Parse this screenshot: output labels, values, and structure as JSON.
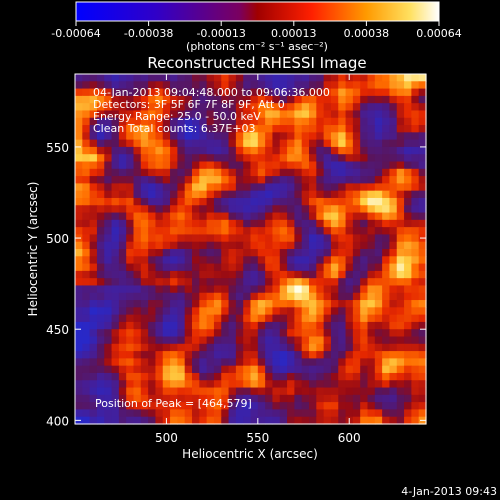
{
  "chart_data": {
    "type": "heatmap",
    "title": "Reconstructed RHESSI Image",
    "xlabel": "Heliocentric X (arcsec)",
    "ylabel": "Heliocentric Y (arcsec)",
    "xlim": [
      450,
      642
    ],
    "ylim": [
      398,
      590
    ],
    "xticks": [
      500,
      550,
      600
    ],
    "yticks": [
      400,
      450,
      500,
      550
    ],
    "colorbar": {
      "min": -0.00064,
      "max": 0.00064,
      "tick_labels": [
        "-0.00064",
        "-0.00038",
        "-0.00013",
        "0.00013",
        "0.00038",
        "0.00064"
      ],
      "units_label": "(photons cm⁻² s⁻¹ asec⁻²)"
    },
    "annotations": [
      "04-Jan-2013 09:04:48.000 to 09:06:36.000",
      "Detectors: 3F 5F 6F 7F 8F 9F, Att 0",
      "Energy Range: 25.0 - 50.0 keV",
      "Clean     Total counts: 6.37E+03"
    ],
    "peak_label": "Position of Peak = [464,579]",
    "timestamp": "4-Jan-2013 09:43"
  }
}
